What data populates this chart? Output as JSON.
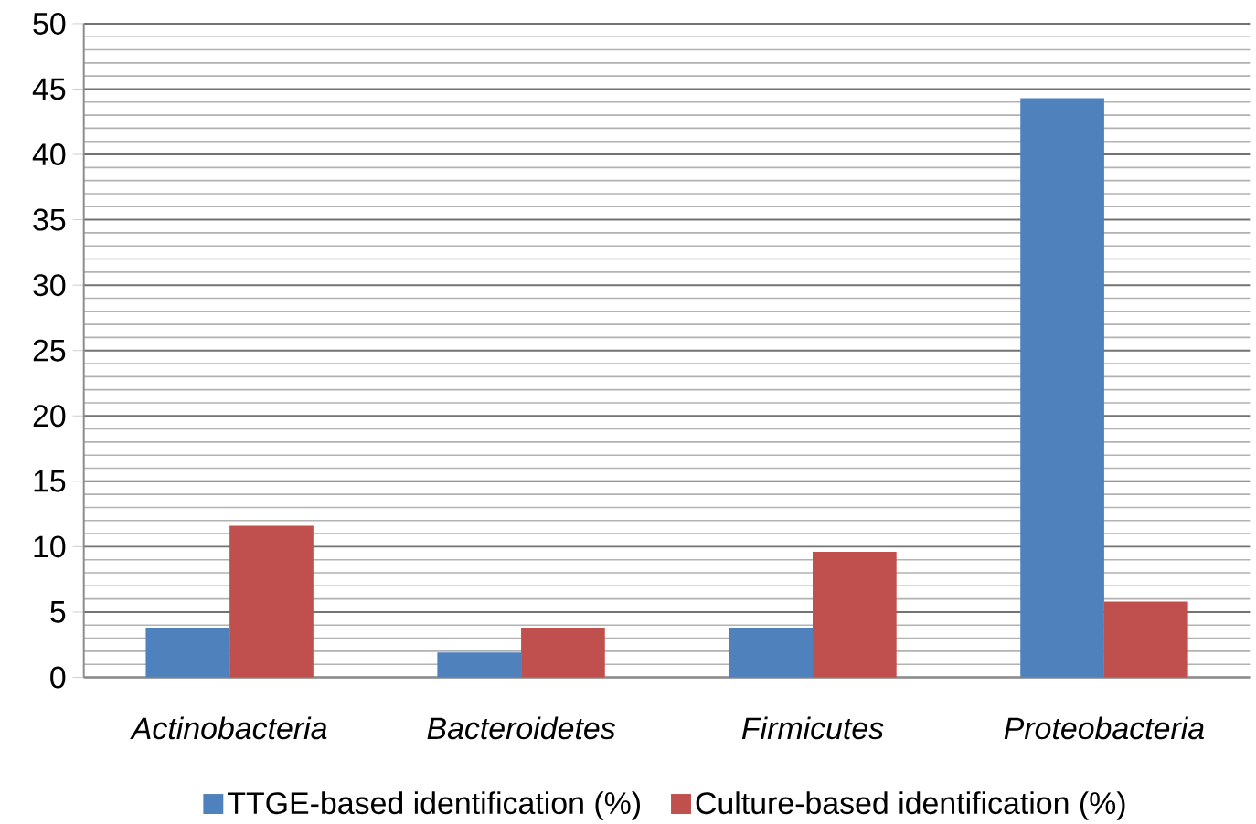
{
  "chart_data": {
    "type": "bar",
    "categories": [
      "Actinobacteria",
      "Bacteroidetes",
      "Firmicutes",
      "Proteobacteria"
    ],
    "series": [
      {
        "name": "TTGE-based identification (%)",
        "color": "#4f81bd",
        "values": [
          3.8,
          1.9,
          3.8,
          44.3
        ]
      },
      {
        "name": "Culture-based identification (%)",
        "color": "#c0504d",
        "values": [
          11.6,
          3.8,
          9.6,
          5.8
        ]
      }
    ],
    "ylim": [
      0,
      50
    ],
    "yticks": [
      0,
      5,
      10,
      15,
      20,
      25,
      30,
      35,
      40,
      45,
      50
    ],
    "grid": "y",
    "legend": "bottom"
  }
}
